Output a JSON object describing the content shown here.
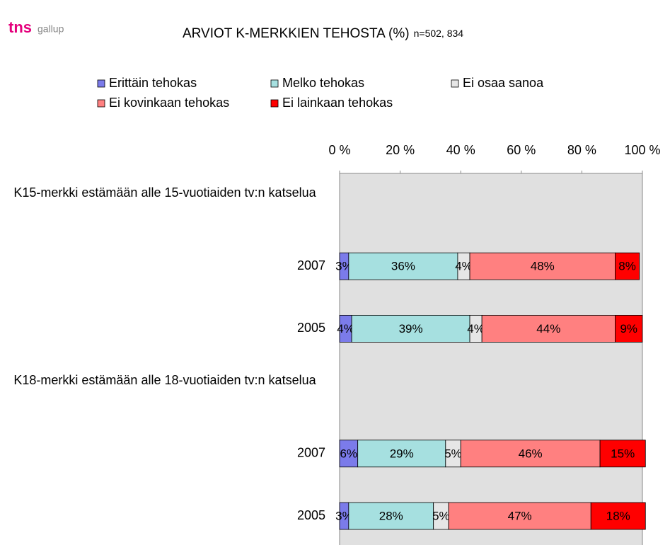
{
  "logo": {
    "brand": "tns",
    "name": "gallup"
  },
  "chart_data": {
    "type": "stacked-bar-horizontal",
    "title": "ARVIOT K-MERKKIEN TEHOSTA (%)",
    "subtitle": "n=502, 834",
    "categories": [
      "K15-merkki estämään alle 15-vuotiaiden tv:n katselua",
      "2007",
      "2005",
      "K18-merkki estämään alle 18-vuotiaiden tv:n katselua",
      "2007",
      "2005"
    ],
    "series": [
      {
        "name": "Erittäin tehokas",
        "color": "#7b7bea",
        "values": [
          null,
          3,
          4,
          null,
          6,
          3
        ],
        "value_labels": [
          null,
          "3%",
          "4%",
          null,
          "6%",
          "3%"
        ]
      },
      {
        "name": "Melko tehokas",
        "color": "#a6e0e0",
        "values": [
          null,
          36,
          39,
          null,
          29,
          28
        ],
        "value_labels": [
          null,
          "36%",
          "39%",
          null,
          "29%",
          "28%"
        ]
      },
      {
        "name": "Ei osaa sanoa",
        "color": "#e6e6e6",
        "values": [
          null,
          4,
          4,
          null,
          5,
          5
        ],
        "value_labels": [
          null,
          "4%",
          "4%",
          null,
          "5%",
          "5%"
        ]
      },
      {
        "name": "Ei kovinkaan tehokas",
        "color": "#ff8080",
        "values": [
          null,
          48,
          44,
          null,
          46,
          47
        ],
        "value_labels": [
          null,
          "48%",
          "44%",
          null,
          "46%",
          "47%"
        ]
      },
      {
        "name": "Ei lainkaan tehokas",
        "color": "#ff0000",
        "values": [
          null,
          8,
          9,
          null,
          15,
          18
        ],
        "value_labels": [
          null,
          "8%",
          "9%",
          null,
          "15%",
          "18%"
        ]
      }
    ],
    "xlim": [
      0,
      100
    ],
    "xticks": [
      {
        "value": 0,
        "label": "0 %"
      },
      {
        "value": 20,
        "label": "20 %"
      },
      {
        "value": 40,
        "label": "40 %"
      },
      {
        "value": 60,
        "label": "60 %"
      },
      {
        "value": 80,
        "label": "80 %"
      },
      {
        "value": 100,
        "label": "100 %"
      }
    ],
    "grid": false,
    "legend": "top"
  }
}
